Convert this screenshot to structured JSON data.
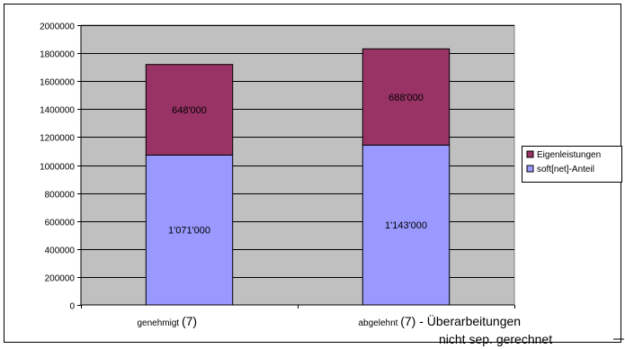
{
  "chart_data": {
    "type": "bar",
    "stacked": true,
    "categories": [
      "genehmigt",
      "abgelehnt"
    ],
    "category_notes": [
      "(7)",
      "(7) - Überarbeitungen"
    ],
    "note_continuation": "nicht sep. gerechnet",
    "series": [
      {
        "name": "soft[net]-Anteil",
        "values": [
          1071000,
          1143000
        ],
        "labels": [
          "1'071'000",
          "1'143'000"
        ]
      },
      {
        "name": "Eigenleistungen",
        "values": [
          648000,
          688000
        ],
        "labels": [
          "648'000",
          "688'000"
        ]
      }
    ],
    "ylim": [
      0,
      2000000
    ],
    "yticks": [
      "0",
      "200000",
      "400000",
      "600000",
      "800000",
      "1000000",
      "1200000",
      "1400000",
      "1600000",
      "1800000",
      "2000000"
    ],
    "grid": true,
    "legend_position": "right",
    "title": "",
    "xlabel": "",
    "ylabel": ""
  },
  "colors": {
    "plot_background": "#c0c0c0",
    "gridline": "#000000",
    "soft_net": "#9999ff",
    "eigen": "#993366"
  }
}
